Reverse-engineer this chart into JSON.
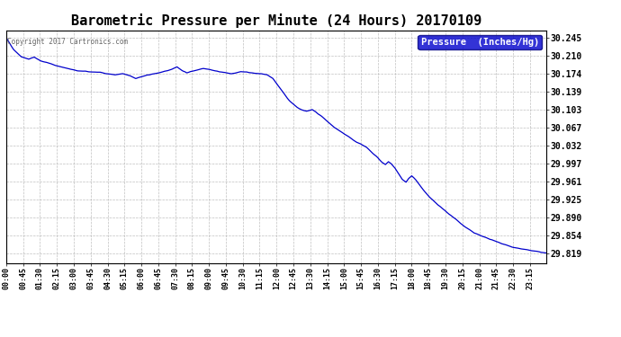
{
  "title": "Barometric Pressure per Minute (24 Hours) 20170109",
  "copyright_text": "Copyright 2017 Cartronics.com",
  "legend_label": "Pressure  (Inches/Hg)",
  "y_ticks": [
    29.819,
    29.854,
    29.89,
    29.925,
    29.961,
    29.997,
    30.032,
    30.067,
    30.103,
    30.139,
    30.174,
    30.21,
    30.245
  ],
  "ylim_min": 29.8,
  "ylim_max": 30.26,
  "x_tick_labels": [
    "00:00",
    "00:45",
    "01:30",
    "02:15",
    "03:00",
    "03:45",
    "04:30",
    "05:15",
    "06:00",
    "06:45",
    "07:30",
    "08:15",
    "09:00",
    "09:45",
    "10:30",
    "11:15",
    "12:00",
    "12:45",
    "13:30",
    "14:15",
    "15:00",
    "15:45",
    "16:30",
    "17:15",
    "18:00",
    "18:45",
    "19:30",
    "20:15",
    "21:00",
    "21:45",
    "22:30",
    "23:15"
  ],
  "line_color": "#0000cc",
  "background_color": "#ffffff",
  "grid_color": "#b0b0b0",
  "title_fontsize": 11,
  "legend_bg_color": "#0000cc",
  "legend_text_color": "#ffffff",
  "copyright_color": "#666666"
}
